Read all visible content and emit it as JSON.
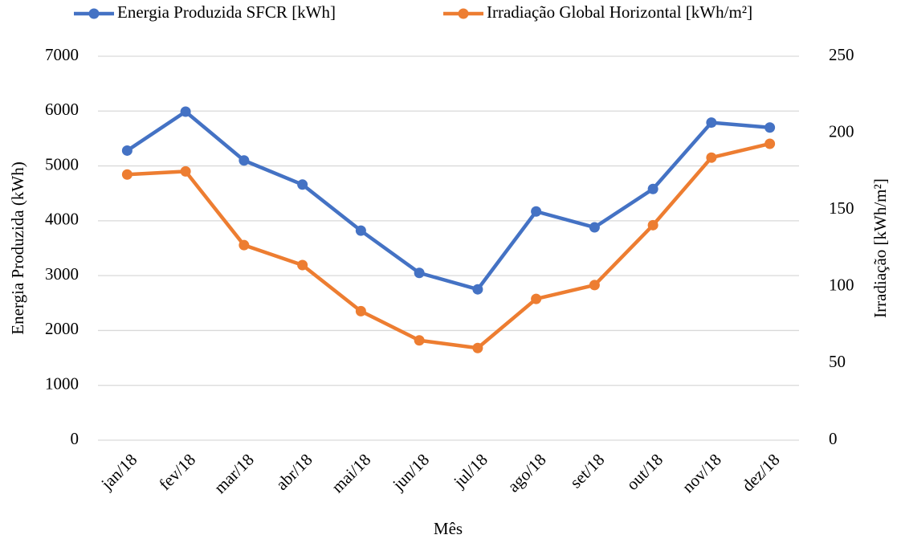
{
  "chart_data": {
    "type": "line",
    "categories": [
      "jan/18",
      "fev/18",
      "mar/18",
      "abr/18",
      "mai/18",
      "jun/18",
      "jul/18",
      "ago/18",
      "set/18",
      "out/18",
      "nov/18",
      "dez/18"
    ],
    "series": [
      {
        "name": "Energia Produzida SFCR [kWh]",
        "color": "#4472c4",
        "values": [
          5280,
          5990,
          5100,
          4660,
          3820,
          3050,
          2750,
          4170,
          3880,
          4580,
          5790,
          5700
        ]
      },
      {
        "name": "Irradiação Global Horizontal [kWh/m²]",
        "color": "#ed7d31",
        "axis": "y2",
        "values": [
          173,
          175,
          127,
          114,
          84,
          65,
          60,
          92,
          101,
          140,
          184,
          193
        ]
      }
    ],
    "xlabel": "Mês",
    "ylabel": "Energia Produzida (kWh)",
    "y2label": "Irradiação [kWh/m²]",
    "ylim": [
      0,
      7000
    ],
    "yticks": [
      0,
      1000,
      2000,
      3000,
      4000,
      5000,
      6000,
      7000
    ],
    "y2lim": [
      0,
      250
    ],
    "y2ticks": [
      0,
      50,
      100,
      150,
      200,
      250
    ],
    "grid": true,
    "legend": "top"
  }
}
